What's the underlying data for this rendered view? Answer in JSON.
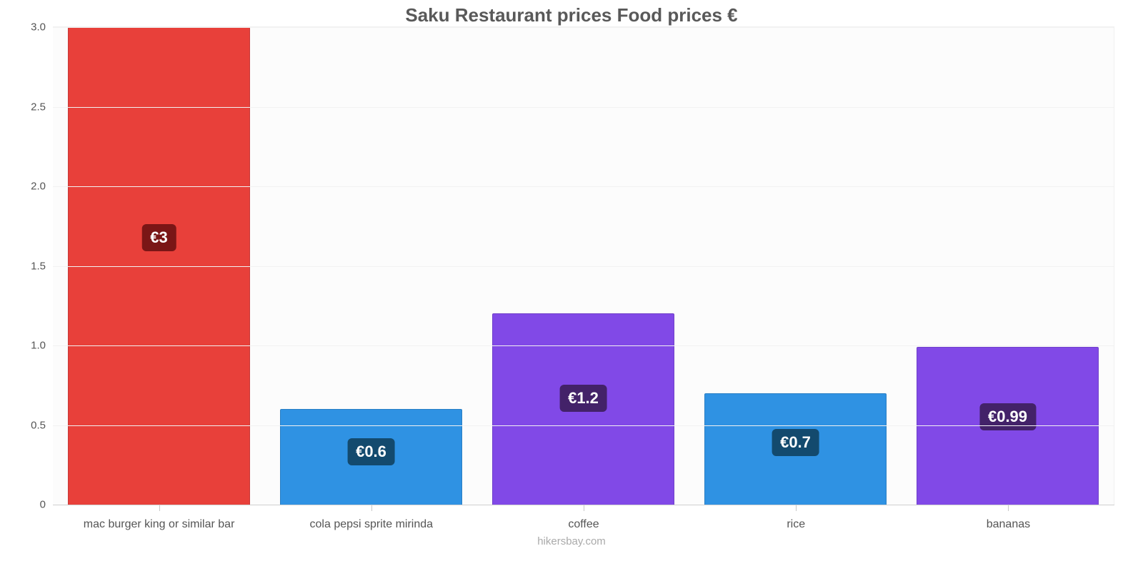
{
  "chart": {
    "type": "bar",
    "title": "Saku Restaurant prices Food prices €",
    "title_fontsize": 26,
    "title_color": "#595959",
    "credit": "hikersbay.com",
    "credit_fontsize": 15,
    "credit_color": "#aaaaaa",
    "background_color": "#fcfcfc",
    "grid_color": "#f2f2f2",
    "axis_line_color": "#d0d0d0",
    "tick_font_color": "#555555",
    "xtick_fontsize": 16,
    "ytick_fontsize": 15,
    "ylim": [
      0,
      3.0
    ],
    "ytick_step": 0.5,
    "yticks": [
      "0",
      "0.5",
      "1.0",
      "1.5",
      "2.0",
      "2.5",
      "3.0"
    ],
    "bar_width_pct": 86,
    "data_label_fontsize": 22,
    "bar_border_colors": {
      "red": "#c73a3a",
      "blue": "#2a7fc4",
      "purple": "#7041c9"
    },
    "bar_label_bg": {
      "red": "#7a1616",
      "blue": "#134a6e",
      "purple": "#432269"
    },
    "categories": [
      {
        "label": "mac burger king or similar bar",
        "value": 3.0,
        "value_label": "€3",
        "color": "#e8403a"
      },
      {
        "label": "cola pepsi sprite mirinda",
        "value": 0.6,
        "value_label": "€0.6",
        "color": "#2f92e3"
      },
      {
        "label": "coffee",
        "value": 1.2,
        "value_label": "€1.2",
        "color": "#8149e7"
      },
      {
        "label": "rice",
        "value": 0.7,
        "value_label": "€0.7",
        "color": "#2f92e3"
      },
      {
        "label": "bananas",
        "value": 0.99,
        "value_label": "€0.99",
        "color": "#8149e7"
      }
    ]
  }
}
